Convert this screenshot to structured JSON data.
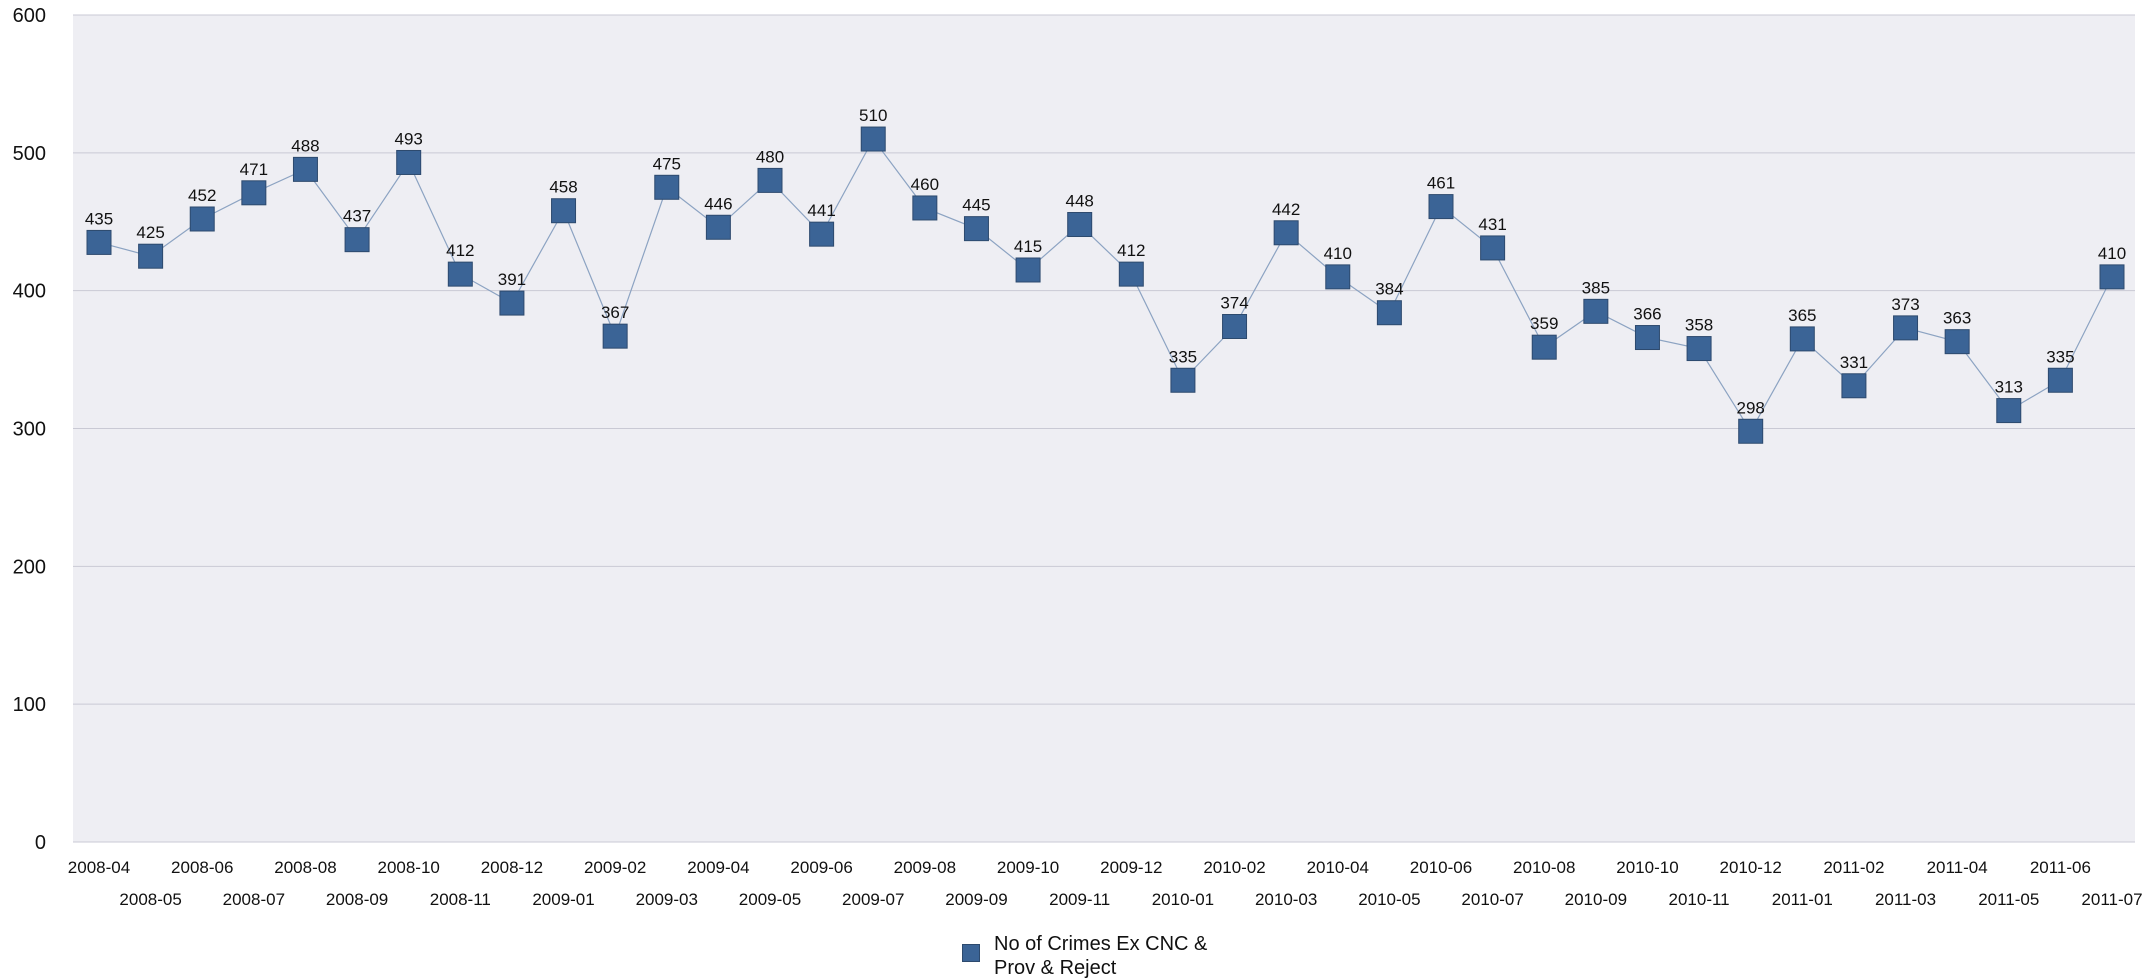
{
  "colors": {
    "plot_background": "#eeeef3",
    "gridline": "#c9c9d4",
    "series": "#3b6496",
    "series_border": "#2d4a6e",
    "line": "#8ca3c2"
  },
  "chart_data": {
    "type": "line",
    "title": "",
    "xlabel": "",
    "ylabel": "",
    "ylim": [
      0,
      600
    ],
    "yticks": [
      0,
      100,
      200,
      300,
      400,
      500,
      600
    ],
    "grid": true,
    "legend_position": "bottom",
    "categories": [
      "2008-04",
      "2008-05",
      "2008-06",
      "2008-07",
      "2008-08",
      "2008-09",
      "2008-10",
      "2008-11",
      "2008-12",
      "2009-01",
      "2009-02",
      "2009-03",
      "2009-04",
      "2009-05",
      "2009-06",
      "2009-07",
      "2009-08",
      "2009-09",
      "2009-10",
      "2009-11",
      "2009-12",
      "2010-01",
      "2010-02",
      "2010-03",
      "2010-04",
      "2010-05",
      "2010-06",
      "2010-07",
      "2010-08",
      "2010-09",
      "2010-10",
      "2010-11",
      "2010-12",
      "2011-01",
      "2011-02",
      "2011-03",
      "2011-04",
      "2011-05",
      "2011-06",
      "2011-07"
    ],
    "series": [
      {
        "name": "No of Crimes Ex CNC & Prov & Reject",
        "values": [
          435,
          425,
          452,
          471,
          488,
          437,
          493,
          412,
          391,
          458,
          367,
          475,
          446,
          480,
          441,
          510,
          460,
          445,
          415,
          448,
          412,
          335,
          374,
          442,
          410,
          384,
          461,
          431,
          359,
          385,
          366,
          358,
          298,
          365,
          331,
          373,
          363,
          313,
          335,
          410
        ]
      }
    ]
  },
  "legend": {
    "label": "No of Crimes Ex CNC & Prov & Reject"
  }
}
